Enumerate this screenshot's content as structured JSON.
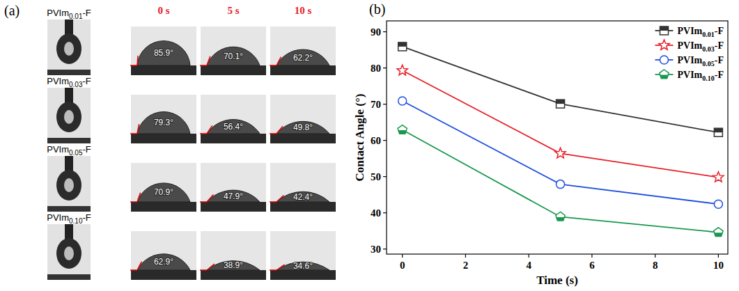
{
  "panel_labels": [
    "(a)",
    "(b)"
  ],
  "panel_a": {
    "time_labels": [
      "0 s",
      "5 s",
      "10 s"
    ],
    "rows": [
      {
        "sample": "PVIm0.01-F",
        "angles": [
          85.9,
          70.1,
          62.2
        ],
        "angle_labels": [
          "85.9°",
          "70.1°",
          "62.2°"
        ]
      },
      {
        "sample": "PVIm0.03-F",
        "angles": [
          79.3,
          56.4,
          49.8
        ],
        "angle_labels": [
          "79.3°",
          "56.4°",
          "49.8°"
        ]
      },
      {
        "sample": "PVIm0.05-F",
        "angles": [
          70.9,
          47.9,
          42.4
        ],
        "angle_labels": [
          "70.9°",
          "47.9°",
          "42.4°"
        ]
      },
      {
        "sample": "PVIm0.10-F",
        "angles": [
          62.9,
          38.9,
          34.6
        ],
        "angle_labels": [
          "62.9°",
          "38.9°",
          "34.6°"
        ]
      }
    ]
  },
  "chart_data": {
    "type": "line",
    "x_label": "Time (s)",
    "y_label": "Contact Angle (°)",
    "x": [
      0,
      5,
      10
    ],
    "xlim": [
      -0.5,
      10.3
    ],
    "xticks": [
      0,
      2,
      4,
      6,
      8,
      10
    ],
    "ylim": [
      28.6,
      93
    ],
    "yticks": [
      30,
      40,
      50,
      60,
      70,
      80,
      90
    ],
    "legend": "top-right",
    "series": [
      {
        "name": "PVIm0.01-F",
        "color": "#333333",
        "marker": "square",
        "values": [
          85.9,
          70.1,
          62.2
        ]
      },
      {
        "name": "PVIm0.03-F",
        "color": "#e8202a",
        "marker": "star",
        "values": [
          79.3,
          56.4,
          49.8
        ]
      },
      {
        "name": "PVIm0.05-F",
        "color": "#1f4fe0",
        "marker": "circle",
        "values": [
          70.9,
          47.9,
          42.4
        ]
      },
      {
        "name": "PVIm0.10-F",
        "color": "#1a9850",
        "marker": "pentagon",
        "values": [
          62.9,
          38.9,
          34.6
        ]
      }
    ]
  }
}
